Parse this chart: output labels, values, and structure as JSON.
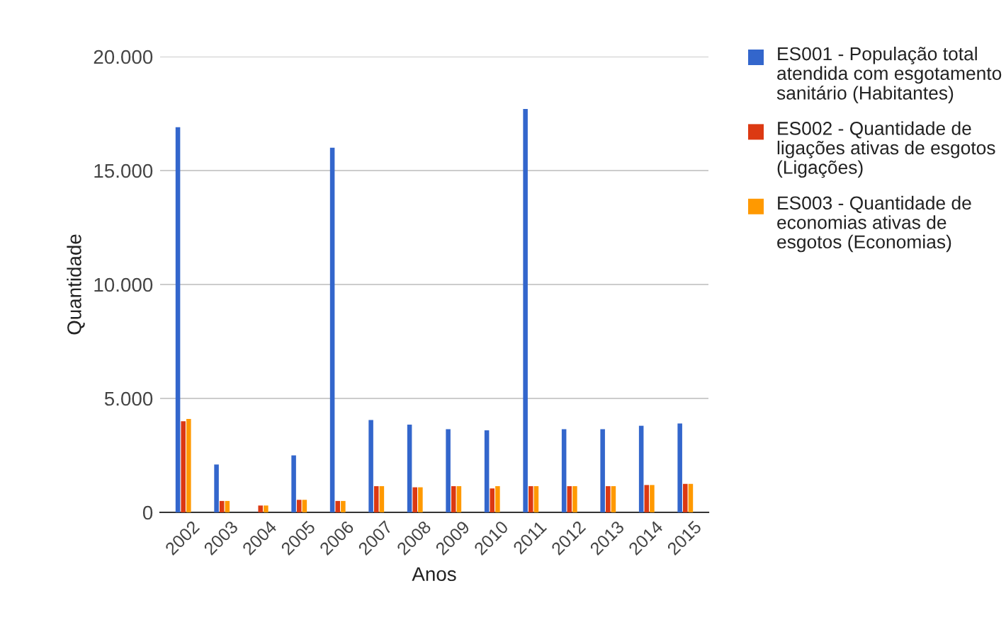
{
  "chart_data": {
    "type": "bar",
    "xlabel": "Anos",
    "ylabel": "Quantidade",
    "categories": [
      "2002",
      "2003",
      "2004",
      "2005",
      "2006",
      "2007",
      "2008",
      "2009",
      "2010",
      "2011",
      "2012",
      "2013",
      "2014",
      "2015"
    ],
    "series": [
      {
        "name": "ES001 - População total atendida com esgotamento sanitário (Habitantes)",
        "color": "#3366cc",
        "values": [
          16900,
          2100,
          null,
          2500,
          16000,
          4050,
          3850,
          3650,
          3600,
          17700,
          3650,
          3650,
          3800,
          3900
        ]
      },
      {
        "name": "ES002 - Quantidade de ligações ativas de esgotos (Ligações)",
        "color": "#dc3912",
        "values": [
          4000,
          500,
          300,
          550,
          500,
          1150,
          1100,
          1150,
          1050,
          1150,
          1150,
          1150,
          1200,
          1250
        ]
      },
      {
        "name": "ES003 - Quantidade de economias ativas de esgotos (Economias)",
        "color": "#ff9900",
        "values": [
          4100,
          500,
          300,
          550,
          500,
          1150,
          1100,
          1150,
          1150,
          1150,
          1150,
          1150,
          1200,
          1250
        ]
      }
    ],
    "ylim": [
      0,
      20000
    ],
    "yticks": [
      {
        "value": 0,
        "label": "0"
      },
      {
        "value": 5000,
        "label": "5.000"
      },
      {
        "value": 10000,
        "label": "10.000"
      },
      {
        "value": 15000,
        "label": "15.000"
      },
      {
        "value": 20000,
        "label": "20.000"
      }
    ],
    "grid": "y",
    "legend": "right"
  }
}
